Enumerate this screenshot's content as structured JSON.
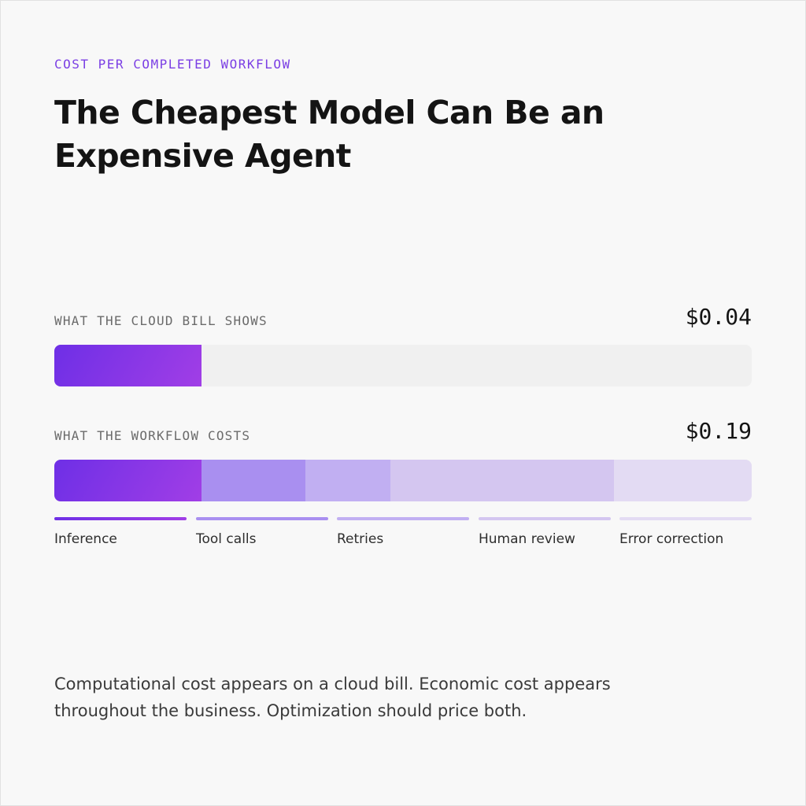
{
  "header": {
    "eyebrow": "COST PER COMPLETED WORKFLOW",
    "title": "The Cheapest Model Can Be an Expensive Agent"
  },
  "chart_data": {
    "type": "bar",
    "orientation": "horizontal",
    "stacked": true,
    "track_max": 0.19,
    "rows": [
      {
        "label": "WHAT THE CLOUD BILL SHOWS",
        "value_label": "$0.04",
        "total": 0.04,
        "segments": [
          {
            "name": "Inference",
            "value": 0.04,
            "color": "#8a38e6"
          }
        ]
      },
      {
        "label": "WHAT THE WORKFLOW COSTS",
        "value_label": "$0.19",
        "total": 0.19,
        "segments": [
          {
            "name": "Inference",
            "value": 0.04,
            "color": "#8a38e6"
          },
          {
            "name": "Tool calls",
            "value": 0.0285,
            "color": "#a98ff0"
          },
          {
            "name": "Retries",
            "value": 0.023,
            "color": "#c1aff2"
          },
          {
            "name": "Human review",
            "value": 0.061,
            "color": "#d4c6f0"
          },
          {
            "name": "Error correction",
            "value": 0.0375,
            "color": "#e3dbf3"
          }
        ]
      }
    ],
    "legend": [
      {
        "name": "Inference",
        "color": "#8a38e6"
      },
      {
        "name": "Tool calls",
        "color": "#a98ff0"
      },
      {
        "name": "Retries",
        "color": "#c1aff2"
      },
      {
        "name": "Human review",
        "color": "#d4c6f0"
      },
      {
        "name": "Error correction",
        "color": "#e3dbf3"
      }
    ],
    "colors": {
      "inference_gradient_start": "#6e2fe6",
      "inference_gradient_end": "#a13ee6",
      "track": "#f0f0f0"
    }
  },
  "caption": "Computational cost appears on a cloud bill. Economic cost appears throughout the business. Optimization should price both."
}
